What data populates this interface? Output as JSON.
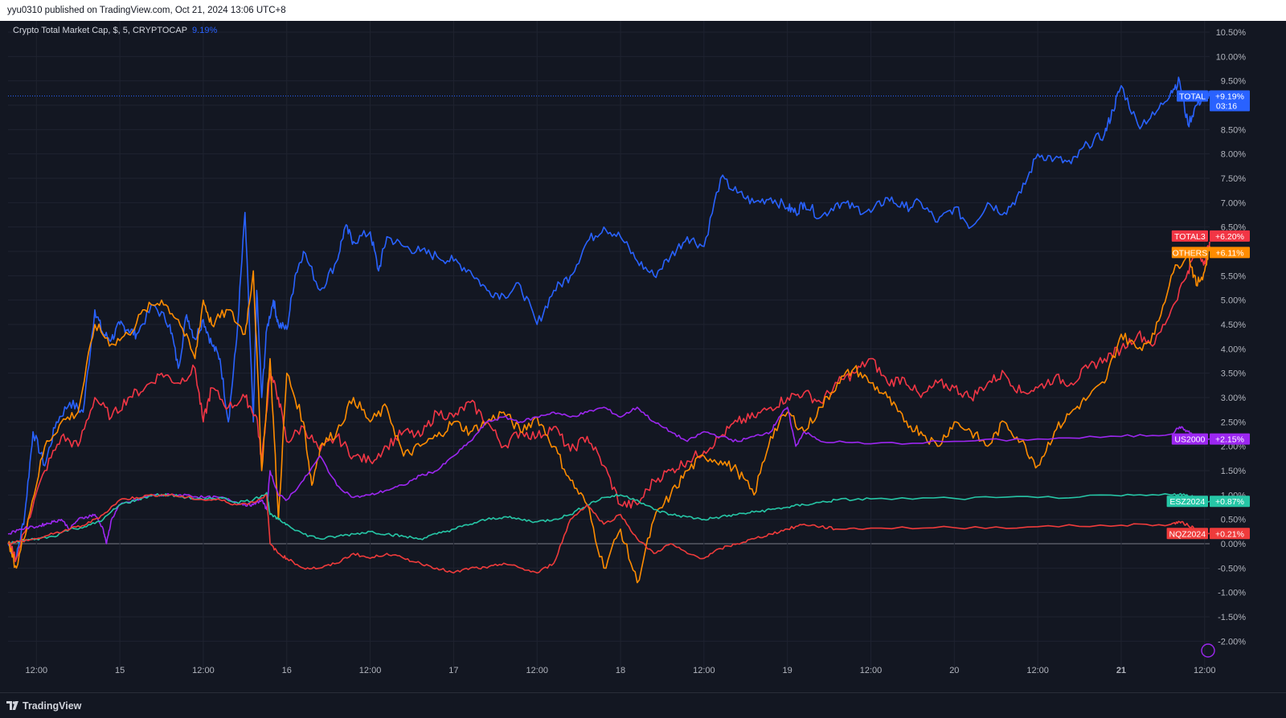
{
  "header": {
    "published_text": "yyu0310 published on TradingView.com, Oct 21, 2024 13:06 UTC+8"
  },
  "legend": {
    "symbol_text": "Crypto Total Market Cap, $, 5, CRYPTOCAP",
    "change_text": "9.19%"
  },
  "footer": {
    "logo_text": "TradingView"
  },
  "colors": {
    "background": "#131722",
    "grid": "#1f2330",
    "TOTAL": "#2962ff",
    "TOTAL3": "#f23645",
    "OTHERS": "#ff8c00",
    "US2000": "#9c27f0",
    "ESZ2024": "#26c6a6",
    "NQZ2024": "#ef3b3b"
  },
  "chart_data": {
    "type": "line",
    "title": "Crypto Total Market Cap, $, 5, CRYPTOCAP",
    "x_unit": "days since Oct 14 2024 00:00 (UTC+8)",
    "x_ticks": [
      {
        "x": 0.5,
        "label": "12:00"
      },
      {
        "x": 1.0,
        "label": "15"
      },
      {
        "x": 1.5,
        "label": "12:00"
      },
      {
        "x": 2.0,
        "label": "16"
      },
      {
        "x": 2.5,
        "label": "12:00"
      },
      {
        "x": 3.0,
        "label": "17"
      },
      {
        "x": 3.5,
        "label": "12:00"
      },
      {
        "x": 4.0,
        "label": "18"
      },
      {
        "x": 4.5,
        "label": "12:00"
      },
      {
        "x": 5.0,
        "label": "19"
      },
      {
        "x": 5.5,
        "label": "12:00"
      },
      {
        "x": 6.0,
        "label": "20"
      },
      {
        "x": 6.5,
        "label": "12:00"
      },
      {
        "x": 7.0,
        "label": "21"
      },
      {
        "x": 7.5,
        "label": "12:00"
      }
    ],
    "y_ticks": [
      "10.50%",
      "10.00%",
      "9.50%",
      "9.00%",
      "8.50%",
      "8.00%",
      "7.50%",
      "7.00%",
      "6.50%",
      "6.00%",
      "5.50%",
      "5.00%",
      "4.50%",
      "4.00%",
      "3.50%",
      "3.00%",
      "2.50%",
      "2.00%",
      "1.50%",
      "1.00%",
      "0.50%",
      "0.00%",
      "-0.50%",
      "-1.00%",
      "-1.50%",
      "-2.00%"
    ],
    "ylim": [
      -2.0,
      10.5
    ],
    "xlim": [
      0.33,
      7.53
    ],
    "series": [
      {
        "name": "TOTAL",
        "label": "TOTAL",
        "value_label": "+9.19%",
        "countdown": "03:16",
        "color": "#2962ff",
        "x": [
          0.33,
          0.38,
          0.43,
          0.48,
          0.55,
          0.62,
          0.7,
          0.78,
          0.85,
          0.9,
          0.95,
          1.0,
          1.05,
          1.1,
          1.2,
          1.3,
          1.35,
          1.4,
          1.45,
          1.5,
          1.55,
          1.6,
          1.65,
          1.7,
          1.75,
          1.8,
          1.82,
          1.85,
          1.88,
          1.92,
          1.95,
          2.0,
          2.05,
          2.1,
          2.2,
          2.3,
          2.35,
          2.4,
          2.5,
          2.55,
          2.6,
          2.7,
          2.8,
          2.9,
          3.0,
          3.1,
          3.2,
          3.3,
          3.4,
          3.5,
          3.6,
          3.7,
          3.8,
          3.9,
          4.0,
          4.1,
          4.2,
          4.3,
          4.4,
          4.5,
          4.6,
          4.7,
          4.8,
          4.9,
          5.0,
          5.05,
          5.1,
          5.2,
          5.3,
          5.4,
          5.5,
          5.6,
          5.7,
          5.8,
          5.9,
          6.0,
          6.1,
          6.2,
          6.3,
          6.4,
          6.5,
          6.6,
          6.7,
          6.8,
          6.9,
          6.95,
          7.0,
          7.1,
          7.2,
          7.3,
          7.35,
          7.4,
          7.45,
          7.5,
          7.53
        ],
        "values": [
          0.0,
          -0.3,
          0.6,
          2.3,
          1.6,
          2.5,
          2.9,
          2.7,
          4.8,
          4.3,
          4.2,
          4.5,
          4.4,
          4.3,
          4.9,
          4.5,
          3.6,
          4.7,
          4.2,
          4.6,
          4.1,
          3.8,
          2.5,
          4.2,
          6.8,
          2.5,
          5.2,
          3.0,
          4.4,
          5.0,
          4.5,
          4.4,
          5.5,
          6.0,
          5.2,
          5.8,
          6.5,
          6.2,
          6.4,
          5.6,
          6.3,
          6.1,
          6.0,
          5.9,
          5.8,
          5.6,
          5.2,
          5.1,
          5.3,
          4.5,
          5.2,
          5.5,
          6.2,
          6.5,
          6.3,
          5.8,
          5.5,
          5.9,
          6.3,
          6.1,
          7.5,
          7.2,
          7.0,
          7.1,
          6.9,
          6.8,
          7.0,
          6.7,
          7.0,
          6.9,
          6.8,
          7.1,
          6.9,
          7.0,
          6.6,
          6.9,
          6.5,
          7.0,
          6.8,
          7.2,
          8.0,
          7.9,
          7.8,
          8.2,
          8.4,
          8.9,
          9.4,
          8.6,
          8.8,
          9.3,
          9.5,
          8.6,
          9.0,
          9.2,
          9.19
        ]
      },
      {
        "name": "TOTAL3",
        "label": "TOTAL3",
        "value_label": "+6.20%",
        "color": "#f23645",
        "x": [
          0.33,
          0.38,
          0.45,
          0.55,
          0.65,
          0.75,
          0.85,
          0.95,
          1.05,
          1.15,
          1.25,
          1.35,
          1.45,
          1.5,
          1.55,
          1.65,
          1.75,
          1.82,
          1.85,
          1.9,
          1.95,
          2.0,
          2.1,
          2.2,
          2.3,
          2.4,
          2.5,
          2.6,
          2.7,
          2.8,
          2.9,
          3.0,
          3.1,
          3.2,
          3.3,
          3.4,
          3.5,
          3.6,
          3.7,
          3.8,
          3.9,
          4.0,
          4.1,
          4.2,
          4.3,
          4.4,
          4.5,
          4.6,
          4.7,
          4.8,
          4.9,
          5.0,
          5.1,
          5.2,
          5.3,
          5.4,
          5.5,
          5.6,
          5.7,
          5.8,
          5.9,
          6.0,
          6.1,
          6.2,
          6.3,
          6.4,
          6.5,
          6.6,
          6.7,
          6.8,
          6.9,
          7.0,
          7.1,
          7.2,
          7.3,
          7.4,
          7.45,
          7.5,
          7.53
        ],
        "values": [
          0.0,
          -0.3,
          0.5,
          1.5,
          2.2,
          2.0,
          3.0,
          2.6,
          3.0,
          3.2,
          3.5,
          3.3,
          3.6,
          2.5,
          3.2,
          2.8,
          3.0,
          2.6,
          1.7,
          3.5,
          3.0,
          2.1,
          2.4,
          1.9,
          2.2,
          1.8,
          1.7,
          2.0,
          2.3,
          2.2,
          2.7,
          2.6,
          2.9,
          2.5,
          2.0,
          2.3,
          2.2,
          2.4,
          1.9,
          2.2,
          1.6,
          0.8,
          0.8,
          1.3,
          1.5,
          1.7,
          1.9,
          2.2,
          2.5,
          2.6,
          2.8,
          3.0,
          3.1,
          2.9,
          3.3,
          3.5,
          3.8,
          3.3,
          3.4,
          3.0,
          3.3,
          3.2,
          3.0,
          3.3,
          3.5,
          3.1,
          3.2,
          3.4,
          3.3,
          3.6,
          3.8,
          4.0,
          4.3,
          4.1,
          4.8,
          5.6,
          6.0,
          5.8,
          6.2
        ]
      },
      {
        "name": "OTHERS",
        "label": "OTHERS",
        "value_label": "+6.11%",
        "color": "#ff8c00",
        "x": [
          0.33,
          0.38,
          0.45,
          0.55,
          0.65,
          0.75,
          0.85,
          0.95,
          1.05,
          1.15,
          1.25,
          1.35,
          1.45,
          1.5,
          1.55,
          1.65,
          1.75,
          1.8,
          1.85,
          1.9,
          1.95,
          2.0,
          2.1,
          2.15,
          2.2,
          2.3,
          2.4,
          2.5,
          2.6,
          2.7,
          2.8,
          2.9,
          3.0,
          3.1,
          3.2,
          3.3,
          3.4,
          3.5,
          3.6,
          3.7,
          3.8,
          3.9,
          4.0,
          4.1,
          4.2,
          4.3,
          4.4,
          4.5,
          4.6,
          4.7,
          4.8,
          4.9,
          5.0,
          5.1,
          5.2,
          5.3,
          5.4,
          5.5,
          5.6,
          5.7,
          5.8,
          5.9,
          6.0,
          6.1,
          6.2,
          6.3,
          6.4,
          6.5,
          6.6,
          6.7,
          6.8,
          6.9,
          7.0,
          7.1,
          7.2,
          7.3,
          7.4,
          7.45,
          7.5,
          7.53
        ],
        "values": [
          0.0,
          -0.5,
          0.5,
          2.0,
          2.5,
          2.7,
          4.5,
          4.1,
          4.3,
          4.8,
          5.0,
          4.6,
          3.8,
          5.0,
          4.5,
          4.8,
          4.3,
          5.6,
          1.5,
          3.8,
          0.5,
          3.5,
          2.5,
          1.2,
          2.0,
          2.3,
          3.0,
          2.5,
          2.8,
          1.8,
          2.0,
          2.2,
          2.5,
          2.3,
          2.5,
          2.7,
          2.3,
          2.6,
          2.0,
          1.3,
          0.8,
          -0.5,
          0.3,
          -0.8,
          0.5,
          1.0,
          1.5,
          1.8,
          1.7,
          1.5,
          1.0,
          2.2,
          2.7,
          2.3,
          2.8,
          3.3,
          3.6,
          3.3,
          3.0,
          2.5,
          2.3,
          2.0,
          2.5,
          2.3,
          2.0,
          2.5,
          2.1,
          1.6,
          2.3,
          2.7,
          3.0,
          3.3,
          4.3,
          4.0,
          4.3,
          5.5,
          6.0,
          5.3,
          5.6,
          6.11
        ]
      },
      {
        "name": "US2000",
        "label": "US2000",
        "value_label": "+2.15%",
        "color": "#9c27f0",
        "x": [
          0.33,
          0.4,
          0.5,
          0.55,
          0.6,
          0.65,
          0.7,
          0.75,
          0.8,
          0.85,
          0.9,
          0.92,
          0.95,
          1.0,
          1.1,
          1.2,
          1.3,
          1.4,
          1.5,
          1.6,
          1.7,
          1.75,
          1.8,
          1.85,
          1.88,
          1.9,
          1.95,
          2.0,
          2.1,
          2.2,
          2.3,
          2.4,
          2.5,
          2.6,
          2.7,
          2.8,
          2.9,
          3.0,
          3.1,
          3.2,
          3.3,
          3.4,
          3.5,
          3.6,
          3.7,
          3.8,
          3.9,
          4.0,
          4.1,
          4.2,
          4.3,
          4.4,
          4.5,
          4.6,
          4.7,
          4.8,
          4.9,
          4.95,
          5.0,
          5.05,
          5.1,
          5.2,
          5.5,
          6.0,
          6.5,
          7.0,
          7.3,
          7.35,
          7.4,
          7.45,
          7.53
        ],
        "values": [
          0.2,
          0.3,
          0.35,
          0.4,
          0.45,
          0.5,
          0.3,
          0.5,
          0.55,
          0.6,
          0.3,
          0.0,
          0.5,
          0.8,
          0.9,
          1.0,
          1.0,
          1.0,
          0.95,
          0.95,
          0.85,
          0.8,
          0.8,
          0.9,
          0.7,
          1.5,
          1.0,
          0.9,
          1.3,
          1.8,
          1.2,
          0.95,
          1.0,
          1.1,
          1.2,
          1.4,
          1.5,
          1.8,
          2.1,
          2.5,
          2.6,
          2.5,
          2.6,
          2.7,
          2.6,
          2.7,
          2.8,
          2.6,
          2.8,
          2.5,
          2.3,
          2.1,
          2.3,
          2.2,
          2.1,
          2.2,
          2.3,
          2.6,
          2.8,
          2.0,
          2.3,
          2.1,
          2.05,
          2.1,
          2.15,
          2.2,
          2.25,
          2.4,
          2.3,
          2.2,
          2.15
        ]
      },
      {
        "name": "ESZ2024",
        "label": "ESZ2024",
        "value_label": "+0.87%",
        "color": "#26c6a6",
        "x": [
          0.33,
          0.4,
          0.5,
          0.6,
          0.7,
          0.8,
          0.9,
          1.0,
          1.1,
          1.2,
          1.3,
          1.4,
          1.5,
          1.6,
          1.7,
          1.8,
          1.88,
          1.9,
          1.95,
          2.0,
          2.1,
          2.2,
          2.3,
          2.4,
          2.5,
          2.6,
          2.7,
          2.8,
          2.9,
          3.0,
          3.1,
          3.2,
          3.3,
          3.4,
          3.5,
          3.6,
          3.7,
          3.8,
          3.9,
          4.0,
          4.1,
          4.2,
          4.3,
          4.4,
          4.5,
          4.6,
          4.7,
          4.8,
          4.9,
          5.0,
          5.1,
          5.2,
          5.3,
          5.5,
          6.0,
          6.5,
          7.0,
          7.3,
          7.35,
          7.4,
          7.45,
          7.53
        ],
        "values": [
          0.0,
          0.05,
          0.1,
          0.15,
          0.3,
          0.35,
          0.5,
          0.8,
          0.9,
          1.0,
          1.0,
          0.95,
          0.9,
          0.95,
          0.85,
          0.9,
          1.05,
          0.6,
          0.5,
          0.4,
          0.2,
          0.1,
          0.15,
          0.2,
          0.25,
          0.2,
          0.15,
          0.1,
          0.2,
          0.3,
          0.4,
          0.5,
          0.55,
          0.5,
          0.45,
          0.5,
          0.6,
          0.8,
          0.95,
          1.0,
          0.9,
          0.7,
          0.6,
          0.55,
          0.5,
          0.55,
          0.6,
          0.65,
          0.7,
          0.75,
          0.8,
          0.85,
          0.9,
          0.92,
          0.93,
          0.95,
          0.98,
          1.0,
          1.02,
          0.98,
          0.95,
          0.87
        ]
      },
      {
        "name": "NQZ2024",
        "label": "NQZ2024",
        "value_label": "+0.21%",
        "color": "#ef3b3b",
        "x": [
          0.33,
          0.4,
          0.5,
          0.6,
          0.7,
          0.8,
          0.9,
          1.0,
          1.1,
          1.2,
          1.3,
          1.4,
          1.5,
          1.6,
          1.7,
          1.8,
          1.88,
          1.9,
          1.95,
          2.0,
          2.1,
          2.2,
          2.3,
          2.4,
          2.5,
          2.6,
          2.7,
          2.8,
          2.9,
          3.0,
          3.1,
          3.2,
          3.3,
          3.4,
          3.5,
          3.6,
          3.7,
          3.8,
          3.9,
          4.0,
          4.1,
          4.2,
          4.3,
          4.4,
          4.5,
          4.6,
          4.7,
          4.8,
          4.9,
          5.0,
          5.1,
          5.2,
          5.3,
          5.5,
          6.0,
          6.5,
          7.0,
          7.3,
          7.35,
          7.4,
          7.45,
          7.53
        ],
        "values": [
          0.0,
          0.05,
          0.1,
          0.2,
          0.3,
          0.4,
          0.6,
          0.9,
          0.95,
          1.0,
          1.0,
          0.95,
          0.9,
          0.9,
          0.8,
          0.85,
          1.0,
          0.0,
          -0.2,
          -0.3,
          -0.5,
          -0.5,
          -0.4,
          -0.2,
          -0.3,
          -0.2,
          -0.3,
          -0.4,
          -0.5,
          -0.6,
          -0.5,
          -0.5,
          -0.4,
          -0.5,
          -0.6,
          -0.4,
          0.5,
          0.8,
          0.4,
          0.6,
          0.1,
          -0.2,
          0.0,
          -0.2,
          -0.3,
          -0.1,
          0.0,
          0.1,
          0.2,
          0.3,
          0.4,
          0.35,
          0.3,
          0.32,
          0.33,
          0.35,
          0.38,
          0.4,
          0.45,
          0.38,
          0.3,
          0.21
        ]
      }
    ]
  }
}
